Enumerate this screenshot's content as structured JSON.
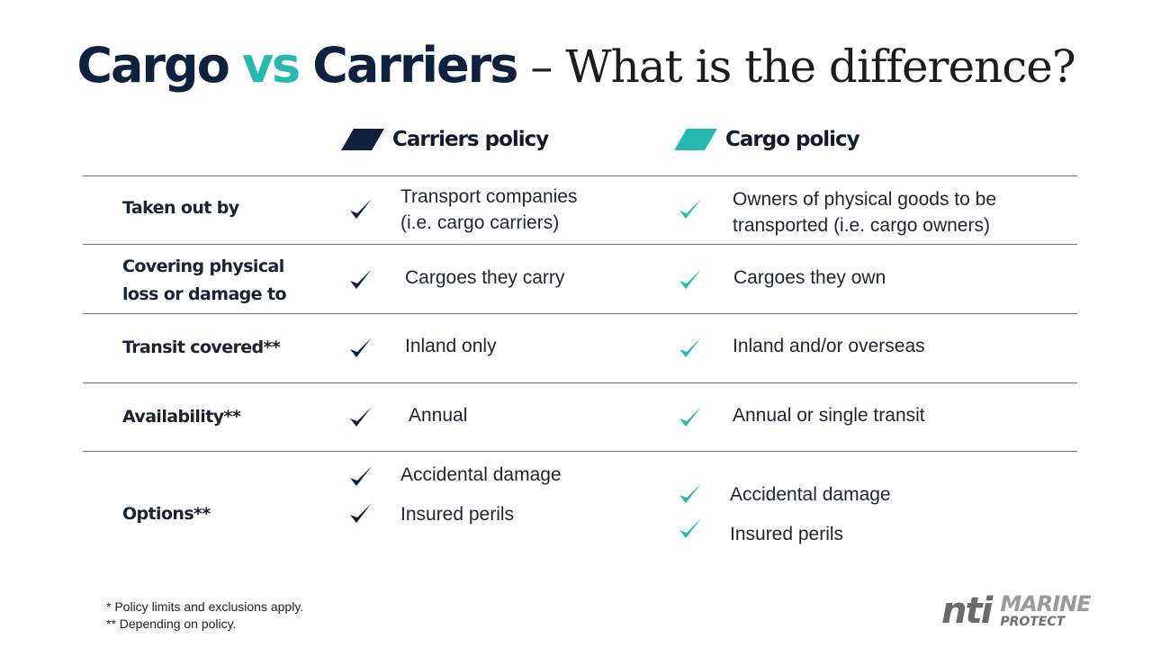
{
  "title": {
    "part1": "Cargo",
    "part2": "vs",
    "part3": "Carriers",
    "part4": " – What is the difference?"
  },
  "columns": {
    "carriers": "Carriers policy",
    "cargo": "Cargo policy"
  },
  "colors": {
    "navy": "#0e2240",
    "teal": "#25b9b0"
  },
  "rows": [
    {
      "label_line1": "Taken out by",
      "carriers_line1": "Transport companies",
      "carriers_line2": "(i.e. cargo carriers)",
      "cargo_line1": "Owners of physical goods to be",
      "cargo_line2": "transported (i.e. cargo owners)"
    },
    {
      "label_line1": "Covering physical",
      "label_line2": "loss or damage to",
      "carriers": "Cargoes they carry",
      "cargo": "Cargoes they own"
    },
    {
      "label_line1": "Transit covered**",
      "carriers": "Inland only",
      "cargo": "Inland and/or overseas"
    },
    {
      "label_line1": "Availability**",
      "carriers": "Annual",
      "cargo": "Annual or single transit"
    },
    {
      "label_line1": "Options**",
      "carriers_opt1": "Accidental damage",
      "carriers_opt2": "Insured perils",
      "cargo_opt1": "Accidental damage",
      "cargo_opt2": "Insured perils"
    }
  ],
  "footnotes": {
    "line1": "* Policy limits and exclusions apply.",
    "line2": "** Depending on policy."
  },
  "logo": {
    "brand": "nti",
    "line1": "MARINE",
    "line2": "PROTECT"
  }
}
